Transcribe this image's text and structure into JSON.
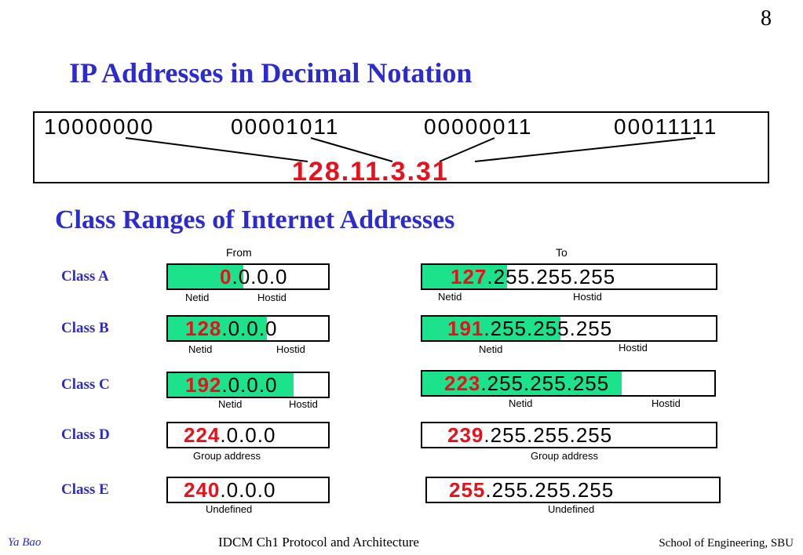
{
  "page_number": "8",
  "title": "IP Addresses in Decimal Notation",
  "binary": {
    "octets": [
      "10000000",
      "00001011",
      "00000011",
      "00011111"
    ],
    "dotted": "128.11.3.31"
  },
  "subtitle": "Class Ranges of Internet Addresses",
  "columns": {
    "from": "From",
    "to": "To"
  },
  "classes": [
    {
      "label": "Class A",
      "from": {
        "red": "0",
        "rest": ".0.0.0"
      },
      "to": {
        "red": "127",
        "rest": ".255.255.255"
      },
      "from_labels": [
        "Netid",
        "Hostid"
      ],
      "to_labels": [
        "Netid",
        "Hostid"
      ]
    },
    {
      "label": "Class B",
      "from": {
        "red": "128",
        "rest": ".0.0.0"
      },
      "to": {
        "red": "191",
        "rest": ".255.255.255"
      },
      "from_labels": [
        "Netid",
        "Hostid"
      ],
      "to_labels": [
        "Netid",
        "Hostid"
      ]
    },
    {
      "label": "Class C",
      "from": {
        "red": "192",
        "rest": ".0.0.0"
      },
      "to": {
        "red": "223",
        "rest": ".255.255.255"
      },
      "from_labels": [
        "Netid",
        "Hostid"
      ],
      "to_labels": [
        "Netid",
        "Hostid"
      ]
    },
    {
      "label": "Class D",
      "from": {
        "red": "224",
        "rest": ".0.0.0"
      },
      "to": {
        "red": "239",
        "rest": ".255.255.255"
      },
      "from_labels": [
        "Group address"
      ],
      "to_labels": [
        "Group address"
      ]
    },
    {
      "label": "Class E",
      "from": {
        "red": "240",
        "rest": ".0.0.0"
      },
      "to": {
        "red": "255",
        "rest": ".255.255.255"
      },
      "from_labels": [
        "Undefined"
      ],
      "to_labels": [
        "Undefined"
      ]
    }
  ],
  "footer": {
    "author": "Ya Bao",
    "course": "IDCM   Ch1 Protocol and Architecture",
    "school": "School of Engineering, SBU"
  },
  "colors": {
    "heading": "#2b2bd0",
    "netid_fill": "#1de28c",
    "highlight": "#e8101a"
  }
}
